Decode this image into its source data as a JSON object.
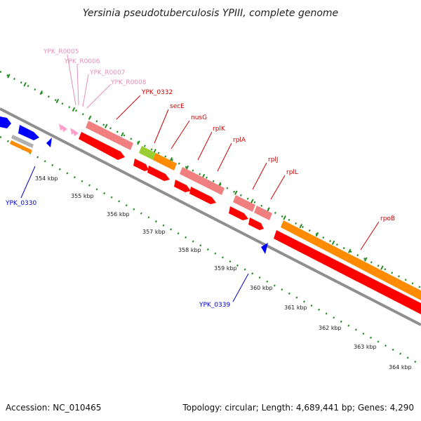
{
  "title": "Yersinia pseudotuberculosis YPIII, complete genome",
  "footer": {
    "accession": "Accession: NC_010465",
    "topology": "Topology: circular; Length: 4,689,441 bp; Genes: 4,290"
  },
  "colors": {
    "backbone": "#8f8f8f",
    "tick": "#228b22",
    "cds": "#ff0000",
    "pseudo": "#f08080",
    "trna": "#ff9fd0",
    "rrna": "#f08080",
    "misc": "#ff8c00",
    "minus": "#0000ff",
    "light_green": "#9acd32",
    "grey": "#b0b0b0",
    "label_red": "#cc0000",
    "label_blue": "#0000cc",
    "label_pink": "#e090b8"
  },
  "scale_labels": [
    "354 kbp",
    "355 kbp",
    "356 kbp",
    "357 kbp",
    "358 kbp",
    "359 kbp",
    "360 kbp",
    "361 kbp",
    "362 kbp",
    "363 kbp",
    "364 kbp"
  ],
  "gene_labels": [
    {
      "text": "YPK_R0005",
      "color": "pink"
    },
    {
      "text": "YPK_R0006",
      "color": "pink"
    },
    {
      "text": "YPK_R0007",
      "color": "pink"
    },
    {
      "text": "YPK_R0008",
      "color": "pink"
    },
    {
      "text": "YPK_0332",
      "color": "red"
    },
    {
      "text": "secE",
      "color": "red"
    },
    {
      "text": "nusG",
      "color": "red"
    },
    {
      "text": "rplK",
      "color": "red"
    },
    {
      "text": "rplA",
      "color": "red"
    },
    {
      "text": "rplJ",
      "color": "red"
    },
    {
      "text": "rplL",
      "color": "red"
    },
    {
      "text": "rpoB",
      "color": "red"
    },
    {
      "text": "YPK_0330",
      "color": "blue"
    },
    {
      "text": "YPK_0339",
      "color": "blue"
    }
  ]
}
